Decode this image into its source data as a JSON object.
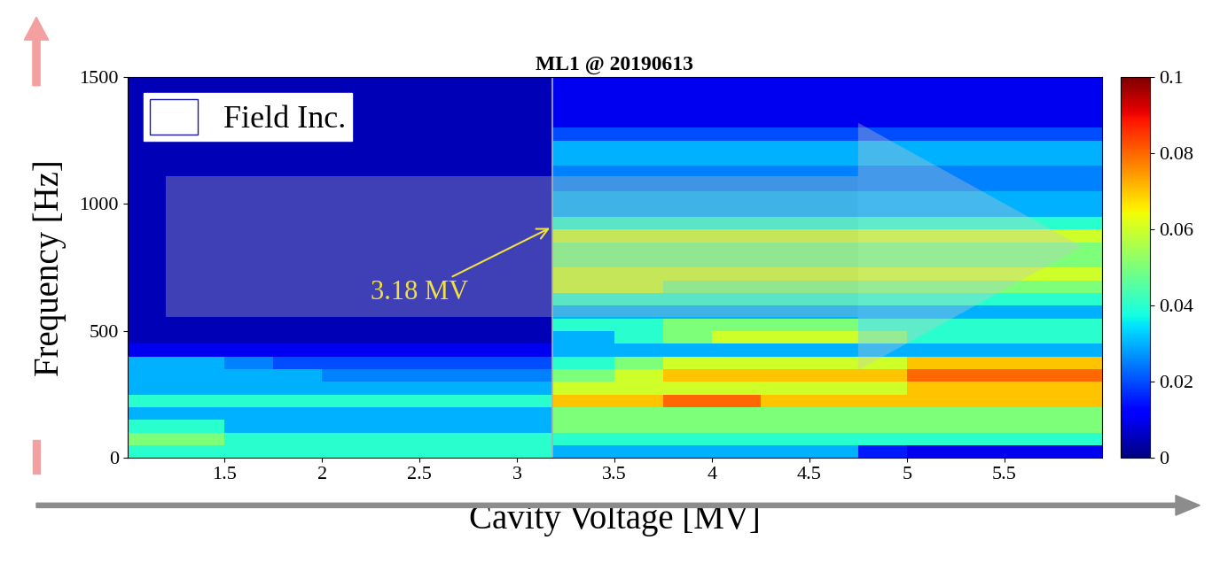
{
  "chart_data": {
    "type": "heatmap",
    "title": "ML1 @ 20190613",
    "x_label": "Cavity Voltage [MV]",
    "y_label": "Frequency [Hz]",
    "xlim": [
      1.0,
      6.0
    ],
    "ylim": [
      0,
      1500
    ],
    "xticks": [
      1.5,
      2,
      2.5,
      3,
      3.5,
      4,
      4.5,
      5,
      5.5
    ],
    "yticks": [
      0,
      500,
      1000,
      1500
    ],
    "x_edges": [
      1.0,
      1.25,
      1.5,
      1.75,
      2.0,
      2.25,
      2.5,
      2.75,
      3.0,
      3.18,
      3.5,
      3.75,
      4.0,
      4.25,
      4.5,
      4.75,
      5.0,
      5.25,
      5.5,
      5.75,
      6.0
    ],
    "y_edges": [
      0,
      50,
      100,
      150,
      200,
      250,
      300,
      350,
      400,
      450,
      500,
      550,
      600,
      650,
      700,
      750,
      800,
      850,
      900,
      950,
      1000,
      1050,
      1100,
      1150,
      1200,
      1250,
      1300,
      1350,
      1400,
      1450,
      1500
    ],
    "cells": [
      [
        0.04,
        0.04,
        0.04,
        0.04,
        0.04,
        0.04,
        0.04,
        0.04,
        0.04,
        0.03,
        0.03,
        0.03,
        0.03,
        0.03,
        0.03,
        0.015,
        0.01,
        0.01,
        0.01,
        0.01
      ],
      [
        0.05,
        0.05,
        0.04,
        0.04,
        0.04,
        0.04,
        0.04,
        0.04,
        0.04,
        0.04,
        0.04,
        0.04,
        0.04,
        0.04,
        0.04,
        0.04,
        0.04,
        0.04,
        0.04,
        0.04
      ],
      [
        0.04,
        0.04,
        0.03,
        0.03,
        0.03,
        0.03,
        0.03,
        0.03,
        0.03,
        0.05,
        0.05,
        0.05,
        0.05,
        0.05,
        0.05,
        0.05,
        0.05,
        0.05,
        0.05,
        0.05
      ],
      [
        0.03,
        0.03,
        0.03,
        0.03,
        0.03,
        0.03,
        0.03,
        0.03,
        0.03,
        0.05,
        0.05,
        0.05,
        0.05,
        0.05,
        0.05,
        0.05,
        0.05,
        0.05,
        0.05,
        0.05
      ],
      [
        0.04,
        0.04,
        0.04,
        0.04,
        0.04,
        0.04,
        0.04,
        0.04,
        0.04,
        0.07,
        0.07,
        0.08,
        0.08,
        0.07,
        0.07,
        0.07,
        0.07,
        0.07,
        0.07,
        0.07
      ],
      [
        0.03,
        0.03,
        0.03,
        0.03,
        0.03,
        0.03,
        0.03,
        0.03,
        0.03,
        0.06,
        0.06,
        0.06,
        0.06,
        0.06,
        0.06,
        0.06,
        0.07,
        0.07,
        0.07,
        0.07
      ],
      [
        0.03,
        0.03,
        0.03,
        0.03,
        0.025,
        0.025,
        0.025,
        0.025,
        0.025,
        0.05,
        0.06,
        0.07,
        0.07,
        0.07,
        0.07,
        0.07,
        0.08,
        0.08,
        0.08,
        0.08
      ],
      [
        0.03,
        0.03,
        0.025,
        0.02,
        0.02,
        0.02,
        0.02,
        0.02,
        0.02,
        0.04,
        0.05,
        0.06,
        0.06,
        0.06,
        0.06,
        0.06,
        0.07,
        0.07,
        0.07,
        0.07
      ],
      [
        0.01,
        0.01,
        0.01,
        0.01,
        0.01,
        0.01,
        0.01,
        0.01,
        0.01,
        0.03,
        0.03,
        0.03,
        0.03,
        0.03,
        0.03,
        0.03,
        0.03,
        0.03,
        0.03,
        0.03
      ],
      [
        0.005,
        0.005,
        0.005,
        0.005,
        0.005,
        0.005,
        0.005,
        0.005,
        0.005,
        0.03,
        0.04,
        0.05,
        0.06,
        0.06,
        0.06,
        0.05,
        0.04,
        0.04,
        0.04,
        0.04
      ],
      [
        0.005,
        0.005,
        0.005,
        0.005,
        0.005,
        0.005,
        0.005,
        0.005,
        0.005,
        0.04,
        0.04,
        0.05,
        0.05,
        0.05,
        0.05,
        0.04,
        0.04,
        0.04,
        0.04,
        0.04
      ],
      [
        0.005,
        0.005,
        0.005,
        0.005,
        0.005,
        0.005,
        0.005,
        0.005,
        0.005,
        0.03,
        0.03,
        0.03,
        0.03,
        0.03,
        0.03,
        0.03,
        0.03,
        0.03,
        0.03,
        0.03
      ],
      [
        0.005,
        0.005,
        0.005,
        0.005,
        0.005,
        0.005,
        0.005,
        0.005,
        0.005,
        0.04,
        0.04,
        0.04,
        0.04,
        0.04,
        0.04,
        0.04,
        0.04,
        0.04,
        0.04,
        0.04
      ],
      [
        0.005,
        0.005,
        0.005,
        0.005,
        0.005,
        0.005,
        0.005,
        0.005,
        0.005,
        0.06,
        0.06,
        0.05,
        0.05,
        0.05,
        0.05,
        0.05,
        0.05,
        0.05,
        0.05,
        0.05
      ],
      [
        0.005,
        0.005,
        0.005,
        0.005,
        0.005,
        0.005,
        0.005,
        0.005,
        0.005,
        0.06,
        0.06,
        0.06,
        0.06,
        0.06,
        0.06,
        0.06,
        0.06,
        0.06,
        0.06,
        0.06
      ],
      [
        0.005,
        0.005,
        0.005,
        0.005,
        0.005,
        0.005,
        0.005,
        0.005,
        0.005,
        0.05,
        0.05,
        0.05,
        0.05,
        0.05,
        0.05,
        0.05,
        0.05,
        0.05,
        0.05,
        0.05
      ],
      [
        0.005,
        0.005,
        0.005,
        0.005,
        0.005,
        0.005,
        0.005,
        0.005,
        0.005,
        0.05,
        0.05,
        0.05,
        0.05,
        0.05,
        0.05,
        0.05,
        0.05,
        0.05,
        0.05,
        0.05
      ],
      [
        0.005,
        0.005,
        0.005,
        0.005,
        0.005,
        0.005,
        0.005,
        0.005,
        0.005,
        0.06,
        0.06,
        0.06,
        0.06,
        0.06,
        0.06,
        0.06,
        0.06,
        0.06,
        0.06,
        0.06
      ],
      [
        0.005,
        0.005,
        0.005,
        0.005,
        0.005,
        0.005,
        0.005,
        0.005,
        0.005,
        0.04,
        0.04,
        0.04,
        0.04,
        0.04,
        0.04,
        0.04,
        0.04,
        0.04,
        0.04,
        0.04
      ],
      [
        0.005,
        0.005,
        0.005,
        0.005,
        0.005,
        0.005,
        0.005,
        0.005,
        0.005,
        0.03,
        0.03,
        0.03,
        0.03,
        0.03,
        0.03,
        0.03,
        0.03,
        0.03,
        0.03,
        0.03
      ],
      [
        0.005,
        0.005,
        0.005,
        0.005,
        0.005,
        0.005,
        0.005,
        0.005,
        0.005,
        0.03,
        0.03,
        0.03,
        0.03,
        0.03,
        0.03,
        0.03,
        0.03,
        0.03,
        0.03,
        0.03
      ],
      [
        0.005,
        0.005,
        0.005,
        0.005,
        0.005,
        0.005,
        0.005,
        0.005,
        0.005,
        0.025,
        0.025,
        0.025,
        0.025,
        0.025,
        0.025,
        0.025,
        0.025,
        0.025,
        0.025,
        0.025
      ],
      [
        0.005,
        0.005,
        0.005,
        0.005,
        0.005,
        0.005,
        0.005,
        0.005,
        0.005,
        0.025,
        0.025,
        0.025,
        0.025,
        0.025,
        0.025,
        0.025,
        0.025,
        0.025,
        0.025,
        0.025
      ],
      [
        0.005,
        0.005,
        0.005,
        0.005,
        0.005,
        0.005,
        0.005,
        0.005,
        0.005,
        0.03,
        0.03,
        0.03,
        0.03,
        0.03,
        0.03,
        0.03,
        0.03,
        0.03,
        0.03,
        0.03
      ],
      [
        0.005,
        0.005,
        0.005,
        0.005,
        0.005,
        0.005,
        0.005,
        0.005,
        0.005,
        0.03,
        0.03,
        0.03,
        0.03,
        0.03,
        0.03,
        0.03,
        0.03,
        0.03,
        0.03,
        0.03
      ],
      [
        0.005,
        0.005,
        0.005,
        0.005,
        0.005,
        0.005,
        0.005,
        0.005,
        0.005,
        0.02,
        0.02,
        0.02,
        0.02,
        0.02,
        0.02,
        0.02,
        0.02,
        0.02,
        0.02,
        0.02
      ],
      [
        0.005,
        0.005,
        0.005,
        0.005,
        0.005,
        0.005,
        0.005,
        0.005,
        0.005,
        0.01,
        0.01,
        0.01,
        0.01,
        0.01,
        0.01,
        0.01,
        0.01,
        0.01,
        0.01,
        0.01
      ],
      [
        0.005,
        0.005,
        0.005,
        0.005,
        0.005,
        0.005,
        0.005,
        0.005,
        0.005,
        0.01,
        0.01,
        0.01,
        0.01,
        0.01,
        0.01,
        0.01,
        0.01,
        0.01,
        0.01,
        0.01
      ],
      [
        0.005,
        0.005,
        0.005,
        0.005,
        0.005,
        0.005,
        0.005,
        0.005,
        0.005,
        0.01,
        0.01,
        0.01,
        0.01,
        0.01,
        0.01,
        0.01,
        0.01,
        0.01,
        0.01,
        0.01
      ],
      [
        0.005,
        0.005,
        0.005,
        0.005,
        0.005,
        0.005,
        0.005,
        0.005,
        0.005,
        0.01,
        0.01,
        0.01,
        0.01,
        0.01,
        0.01,
        0.01,
        0.01,
        0.01,
        0.01,
        0.01
      ]
    ],
    "colorbar_range": [
      0,
      0.1
    ],
    "colorbar_ticks": [
      0,
      0.02,
      0.04,
      0.06,
      0.08,
      0.1
    ],
    "legend": "upper left",
    "legend_label": "Field Inc.",
    "threshold": 3.18,
    "annotation": {
      "text": "3.18 MV",
      "x": 3.18,
      "y": 910
    }
  }
}
